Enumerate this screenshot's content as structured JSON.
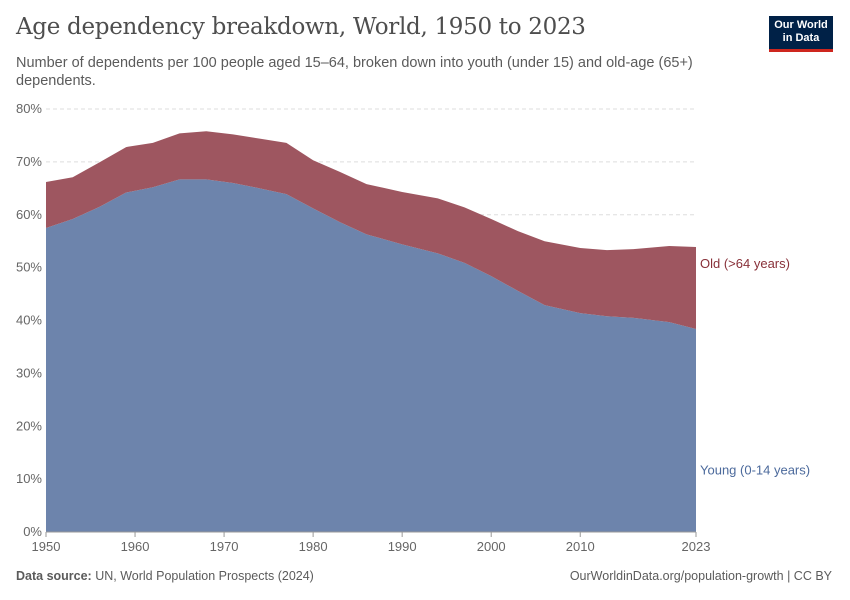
{
  "header": {
    "title": "Age dependency breakdown, World, 1950 to 2023",
    "subtitle": "Number of dependents per 100 people aged 15–64, broken down into youth (under 15) and old-age (65+) dependents."
  },
  "logo": {
    "line1": "Our World",
    "line2": "in Data"
  },
  "footer": {
    "source_label": "Data source:",
    "source": "UN, World Population Prospects (2024)",
    "url": "OurWorldinData.org/population-growth | CC BY"
  },
  "chart_data": {
    "type": "area",
    "stacked": true,
    "title": "Age dependency breakdown, World, 1950 to 2023",
    "xlim": [
      1950,
      2023
    ],
    "ylim": [
      0,
      80
    ],
    "x_ticks": [
      "1950",
      "1960",
      "1970",
      "1980",
      "1990",
      "2000",
      "2010",
      "2023"
    ],
    "y_ticks": [
      "0%",
      "10%",
      "20%",
      "30%",
      "40%",
      "50%",
      "60%",
      "70%",
      "80%"
    ],
    "grid": "horizontal dashed",
    "legend": "right, inline labels",
    "x": [
      1950,
      1953,
      1956,
      1959,
      1962,
      1965,
      1968,
      1971,
      1974,
      1977,
      1980,
      1983,
      1986,
      1990,
      1994,
      1997,
      2000,
      2003,
      2006,
      2010,
      2013,
      2016,
      2020,
      2023
    ],
    "series": [
      {
        "name": "Young (0-14 years)",
        "color": "#6d84ac",
        "values": [
          57.5,
          59.2,
          61.5,
          64.2,
          65.2,
          66.7,
          66.7,
          66.0,
          65.0,
          63.9,
          61.2,
          58.6,
          56.3,
          54.4,
          52.7,
          50.9,
          48.4,
          45.6,
          42.9,
          41.4,
          40.8,
          40.5,
          39.7,
          38.4
        ]
      },
      {
        "name": "Old (>64 years)",
        "color": "#9e5660",
        "values": [
          8.7,
          7.9,
          8.4,
          8.6,
          8.4,
          8.7,
          9.1,
          9.2,
          9.4,
          9.7,
          9.1,
          9.5,
          9.5,
          9.9,
          10.4,
          10.5,
          10.8,
          11.3,
          12.1,
          12.3,
          12.5,
          13.0,
          14.4,
          15.5
        ]
      }
    ]
  }
}
